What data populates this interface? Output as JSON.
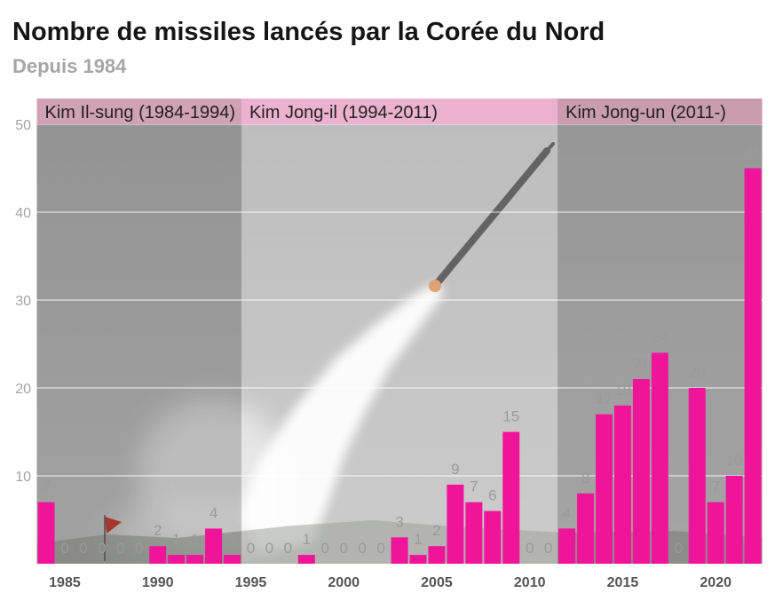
{
  "chart_data": {
    "type": "bar",
    "title": "Nombre de missiles lancés par la Corée du Nord",
    "subtitle": "Depuis 1984",
    "x": [
      1984,
      1985,
      1986,
      1987,
      1988,
      1989,
      1990,
      1991,
      1992,
      1993,
      1994,
      1995,
      1996,
      1997,
      1998,
      1999,
      2000,
      2001,
      2002,
      2003,
      2004,
      2005,
      2006,
      2007,
      2008,
      2009,
      2010,
      2011,
      2012,
      2013,
      2014,
      2015,
      2016,
      2017,
      2018,
      2019,
      2020,
      2021,
      2022
    ],
    "values": [
      7,
      0,
      0,
      0,
      0,
      0,
      2,
      1,
      1,
      4,
      1,
      0,
      0,
      0,
      1,
      0,
      0,
      0,
      0,
      3,
      1,
      2,
      9,
      7,
      6,
      15,
      0,
      0,
      4,
      8,
      17,
      18,
      21,
      24,
      0,
      20,
      7,
      10,
      45
    ],
    "xticks": [
      1985,
      1990,
      1995,
      2000,
      2005,
      2010,
      2015,
      2020
    ],
    "yticks": [
      10,
      20,
      30,
      40,
      50
    ],
    "ylim": [
      0,
      50
    ],
    "grid": true,
    "data_labels": true,
    "bar_color": "#f0149a",
    "periods": [
      {
        "label": "Kim Il-sung (1984-1994)",
        "years": [
          1984,
          1994
        ],
        "header_color": "#d1a2b3",
        "shade": "rgba(60,60,60,0.22)"
      },
      {
        "label": "Kim Jong-il (1994-2011)",
        "years": [
          1995,
          2011
        ],
        "header_color": "#ebb1ce",
        "shade": "rgba(255,255,255,0.20)"
      },
      {
        "label": "Kim Jong-un (2011-)",
        "years": [
          2012,
          2022
        ],
        "header_color": "#ca9cb0",
        "shade": "rgba(60,60,60,0.20)"
      }
    ]
  }
}
